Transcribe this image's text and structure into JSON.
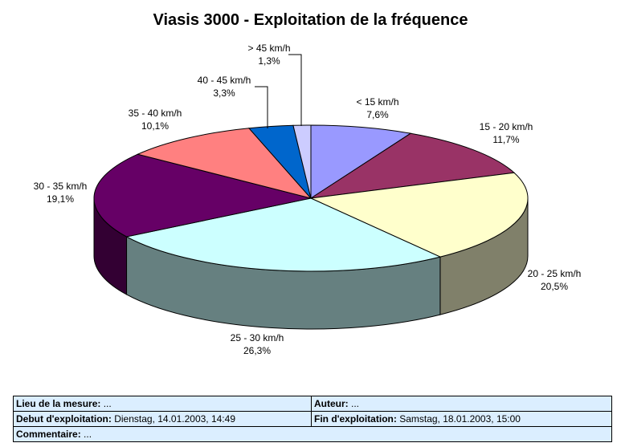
{
  "chart_data": {
    "type": "pie",
    "title": "Viasis 3000 - Exploitation de la fréquence",
    "three_d": true,
    "start": "top, clockwise",
    "slices": [
      {
        "label": "< 15 km/h",
        "value_label": "7,6%",
        "value": 7.6,
        "top": "#9999ff",
        "side": "#5c5c99"
      },
      {
        "label": "15 - 20 km/h",
        "value_label": "11,7%",
        "value": 11.7,
        "top": "#993366",
        "side": "#5c1f3d"
      },
      {
        "label": "20 - 25 km/h",
        "value_label": "20,5%",
        "value": 20.5,
        "top": "#ffffcc",
        "side": "#80806a"
      },
      {
        "label": "25 - 30 km/h",
        "value_label": "26,3%",
        "value": 26.3,
        "top": "#ccffff",
        "side": "#668080"
      },
      {
        "label": "30 - 35 km/h",
        "value_label": "19,1%",
        "value": 19.1,
        "top": "#660066",
        "side": "#330033"
      },
      {
        "label": "35 - 40 km/h",
        "value_label": "10,1%",
        "value": 10.1,
        "top": "#ff8080",
        "side": "#994d4d"
      },
      {
        "label": "40 - 45 km/h",
        "value_label": "3,3%",
        "value": 3.3,
        "top": "#0066cc",
        "side": "#003d7a"
      },
      {
        "label": "> 45 km/h",
        "value_label": "1,3%",
        "value": 1.3,
        "top": "#ccccff",
        "side": "#7a7a99"
      }
    ]
  },
  "info": {
    "lieu_label": "Lieu de la mesure:",
    "lieu_value": "...",
    "auteur_label": "Auteur:",
    "auteur_value": "...",
    "debut_label": "Debut d'exploitation:",
    "debut_value": "Dienstag, 14.01.2003, 14:49",
    "fin_label": "Fin d'exploitation:",
    "fin_value": "Samstag, 18.01.2003, 15:00",
    "comment_label": "Commentaire:",
    "comment_value": "..."
  },
  "colors": {
    "table_background": "#dbeeff",
    "leader_line": "#000000"
  }
}
